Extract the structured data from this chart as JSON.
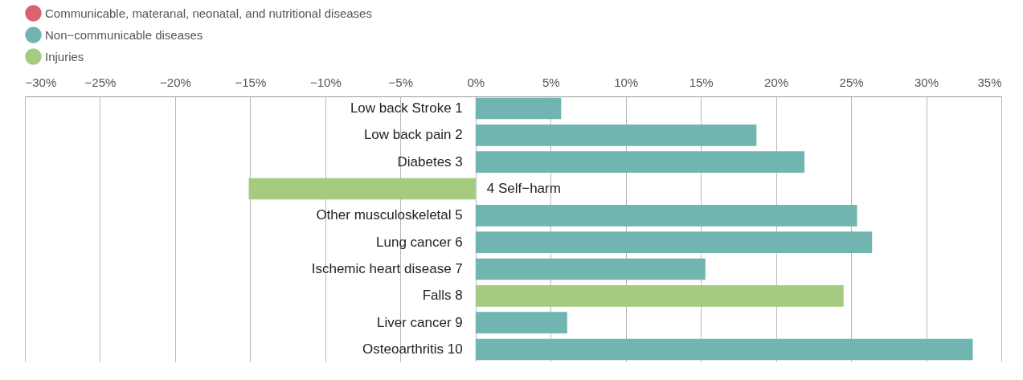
{
  "chart_data": {
    "type": "bar",
    "orientation": "horizontal",
    "categories": [
      "Low back Stroke   1",
      "Low back pain   2",
      "Diabetes   3",
      "4   Self−harm",
      "Other musculoskeletal   5",
      "Lung cancer   6",
      "Ischemic heart disease   7",
      "Falls   8",
      "Liver cancer   9",
      "Osteoarthritis   10"
    ],
    "series": [
      {
        "name": "Communicable, materanal, neonatal, and nutritional diseases",
        "color": "#d9626f",
        "values": [
          null,
          null,
          null,
          null,
          null,
          null,
          null,
          null,
          null,
          null
        ]
      },
      {
        "name": "Non−communicable diseases",
        "color": "#70b5b0",
        "values": [
          5.7,
          18.7,
          21.9,
          null,
          25.4,
          26.4,
          15.3,
          null,
          6.1,
          33.1
        ]
      },
      {
        "name": "Injuries",
        "color": "#a4cb80",
        "values": [
          null,
          null,
          null,
          -15.1,
          null,
          null,
          null,
          24.5,
          null,
          null
        ]
      }
    ],
    "xlim": [
      -30,
      35
    ],
    "xticks": [
      {
        "value": -30,
        "label": "−30%"
      },
      {
        "value": -25,
        "label": "−25%"
      },
      {
        "value": -20,
        "label": "−20%"
      },
      {
        "value": -15,
        "label": "−15%"
      },
      {
        "value": -10,
        "label": "−10%"
      },
      {
        "value": -5,
        "label": "−5%"
      },
      {
        "value": 0,
        "label": "0%"
      },
      {
        "value": 5,
        "label": "5%"
      },
      {
        "value": 10,
        "label": "10%"
      },
      {
        "value": 15,
        "label": "15%"
      },
      {
        "value": 20,
        "label": "20%"
      },
      {
        "value": 25,
        "label": "25%"
      },
      {
        "value": 30,
        "label": "30%"
      },
      {
        "value": 35,
        "label": "35%"
      }
    ],
    "grid": "x",
    "legend": "top left"
  }
}
